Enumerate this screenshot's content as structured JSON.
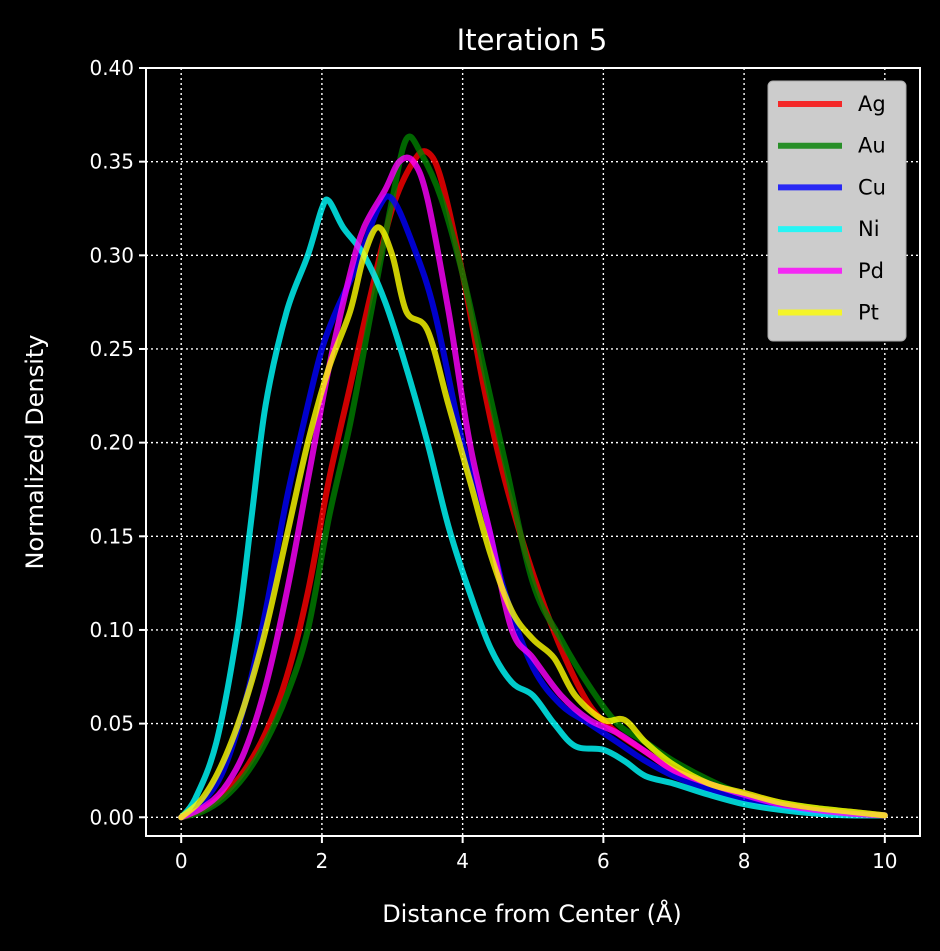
{
  "chart_data": {
    "type": "line",
    "title": "Iteration 5",
    "xlabel": "Distance from Center (Å)",
    "ylabel": "Normalized Density",
    "xlim": [
      -0.5,
      10.5
    ],
    "ylim": [
      -0.01,
      0.4
    ],
    "xticks": [
      0,
      2,
      4,
      6,
      8,
      10
    ],
    "yticks": [
      0.0,
      0.05,
      0.1,
      0.15,
      0.2,
      0.25,
      0.3,
      0.35,
      0.4
    ],
    "grid": true,
    "legend": "top-right",
    "series": [
      {
        "name": "Ag",
        "color": "#ff0000",
        "x": [
          0,
          0.3,
          0.6,
          0.9,
          1.2,
          1.5,
          1.8,
          2.1,
          2.4,
          2.7,
          3.0,
          3.3,
          3.5,
          3.7,
          4.0,
          4.3,
          4.6,
          5.0,
          5.4,
          5.8,
          6.2,
          6.6,
          7.0,
          7.5,
          8.0,
          8.5,
          9.0,
          9.5,
          10.0
        ],
        "y": [
          0.0,
          0.004,
          0.012,
          0.025,
          0.045,
          0.075,
          0.12,
          0.18,
          0.23,
          0.28,
          0.325,
          0.35,
          0.355,
          0.34,
          0.29,
          0.23,
          0.18,
          0.13,
          0.09,
          0.06,
          0.045,
          0.035,
          0.025,
          0.018,
          0.012,
          0.008,
          0.004,
          0.003,
          0.001
        ]
      },
      {
        "name": "Au",
        "color": "#008000",
        "x": [
          0,
          0.3,
          0.6,
          0.9,
          1.2,
          1.5,
          1.8,
          2.1,
          2.4,
          2.7,
          3.0,
          3.2,
          3.4,
          3.7,
          4.0,
          4.3,
          4.6,
          5.0,
          5.4,
          5.8,
          6.2,
          6.6,
          7.0,
          7.5,
          8.0,
          8.5,
          9.0,
          9.5,
          10.0
        ],
        "y": [
          0.0,
          0.003,
          0.01,
          0.022,
          0.04,
          0.065,
          0.1,
          0.16,
          0.21,
          0.27,
          0.33,
          0.362,
          0.355,
          0.33,
          0.29,
          0.24,
          0.19,
          0.125,
          0.095,
          0.07,
          0.05,
          0.04,
          0.03,
          0.02,
          0.012,
          0.008,
          0.005,
          0.003,
          0.001
        ]
      },
      {
        "name": "Cu",
        "color": "#0000ff",
        "x": [
          0,
          0.3,
          0.6,
          0.9,
          1.2,
          1.5,
          1.8,
          2.0,
          2.2,
          2.5,
          2.8,
          3.0,
          3.3,
          3.6,
          4.0,
          4.3,
          4.6,
          5.0,
          5.4,
          5.8,
          6.2,
          6.6,
          7.0,
          7.5,
          8.0,
          8.5,
          9.0,
          9.5,
          10.0
        ],
        "y": [
          0.0,
          0.008,
          0.025,
          0.06,
          0.11,
          0.17,
          0.22,
          0.25,
          0.27,
          0.295,
          0.325,
          0.33,
          0.305,
          0.27,
          0.2,
          0.165,
          0.12,
          0.08,
          0.06,
          0.05,
          0.04,
          0.03,
          0.022,
          0.015,
          0.01,
          0.006,
          0.003,
          0.002,
          0.001
        ]
      },
      {
        "name": "Ni",
        "color": "#00ffff",
        "x": [
          0,
          0.2,
          0.5,
          0.8,
          1.0,
          1.2,
          1.5,
          1.8,
          2.0,
          2.1,
          2.3,
          2.6,
          2.9,
          3.2,
          3.5,
          3.8,
          4.1,
          4.4,
          4.7,
          5.0,
          5.3,
          5.6,
          6.0,
          6.3,
          6.6,
          7.0,
          7.5,
          8.0,
          8.5,
          9.0,
          9.5,
          10.0
        ],
        "y": [
          0.0,
          0.01,
          0.04,
          0.1,
          0.16,
          0.22,
          0.27,
          0.3,
          0.325,
          0.329,
          0.315,
          0.3,
          0.275,
          0.24,
          0.2,
          0.155,
          0.12,
          0.09,
          0.072,
          0.065,
          0.05,
          0.038,
          0.036,
          0.03,
          0.022,
          0.018,
          0.012,
          0.007,
          0.004,
          0.002,
          0.001,
          0.001
        ]
      },
      {
        "name": "Pd",
        "color": "#ff00ff",
        "x": [
          0,
          0.3,
          0.6,
          0.9,
          1.2,
          1.5,
          1.8,
          2.1,
          2.4,
          2.6,
          2.9,
          3.1,
          3.3,
          3.5,
          3.8,
          4.1,
          4.4,
          4.7,
          5.0,
          5.4,
          5.8,
          6.2,
          6.6,
          7.0,
          7.5,
          8.0,
          8.5,
          9.0,
          9.5,
          10.0
        ],
        "y": [
          0.0,
          0.005,
          0.015,
          0.035,
          0.07,
          0.12,
          0.18,
          0.24,
          0.29,
          0.315,
          0.335,
          0.35,
          0.35,
          0.33,
          0.27,
          0.2,
          0.15,
          0.1,
          0.085,
          0.065,
          0.052,
          0.045,
          0.035,
          0.025,
          0.018,
          0.012,
          0.007,
          0.004,
          0.002,
          0.001
        ]
      },
      {
        "name": "Pt",
        "color": "#ffff00",
        "x": [
          0,
          0.3,
          0.6,
          0.9,
          1.2,
          1.5,
          1.8,
          2.1,
          2.4,
          2.6,
          2.8,
          3.0,
          3.2,
          3.5,
          3.8,
          4.1,
          4.4,
          4.7,
          5.0,
          5.3,
          5.6,
          6.0,
          6.3,
          6.6,
          7.0,
          7.5,
          8.0,
          8.5,
          9.0,
          9.5,
          10.0
        ],
        "y": [
          0.0,
          0.01,
          0.03,
          0.06,
          0.1,
          0.15,
          0.2,
          0.24,
          0.27,
          0.3,
          0.315,
          0.3,
          0.27,
          0.26,
          0.22,
          0.18,
          0.14,
          0.11,
          0.095,
          0.085,
          0.065,
          0.052,
          0.052,
          0.04,
          0.028,
          0.018,
          0.013,
          0.008,
          0.005,
          0.003,
          0.001
        ]
      }
    ]
  }
}
